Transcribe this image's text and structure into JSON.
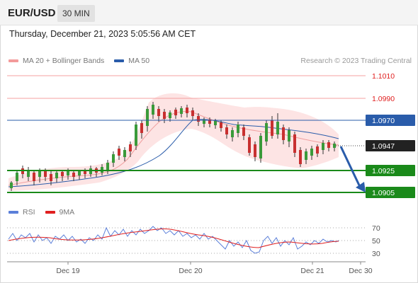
{
  "header": {
    "symbol": "EUR/USD",
    "timeframe": "30 MIN"
  },
  "datetime": "Thursday, December 21, 2023 5:05:56 AM CET",
  "legend": {
    "items": [
      {
        "label": "MA 20 + Bollinger Bands",
        "color": "#f39a9a"
      },
      {
        "label": "MA 50",
        "color": "#2a5caa"
      }
    ],
    "credit": "Research © 2023 Trading Central"
  },
  "price_levels": [
    {
      "value": "1.1010",
      "kind": "resistance-thin"
    },
    {
      "value": "1.0990",
      "kind": "resistance-thin"
    },
    {
      "value": "1.0970",
      "kind": "pivot"
    },
    {
      "value": "1.0947",
      "kind": "current"
    },
    {
      "value": "1.0925",
      "kind": "support"
    },
    {
      "value": "1.0905",
      "kind": "support"
    }
  ],
  "rsi_legend": {
    "items": [
      {
        "label": "RSI",
        "color": "#5b7fd9"
      },
      {
        "label": "9MA",
        "color": "#e02020"
      }
    ]
  },
  "rsi_levels": [
    "70",
    "50",
    "30"
  ],
  "x_axis": [
    "Dec 19",
    "Dec 20",
    "Dec 21",
    "Dec 30"
  ],
  "colors": {
    "resistance": "#e02020",
    "pivot": "#2a5caa",
    "support": "#1a8a1a",
    "current": "#222222",
    "band_fill": "#fde4e4",
    "arrow": "#2a5caa"
  }
}
